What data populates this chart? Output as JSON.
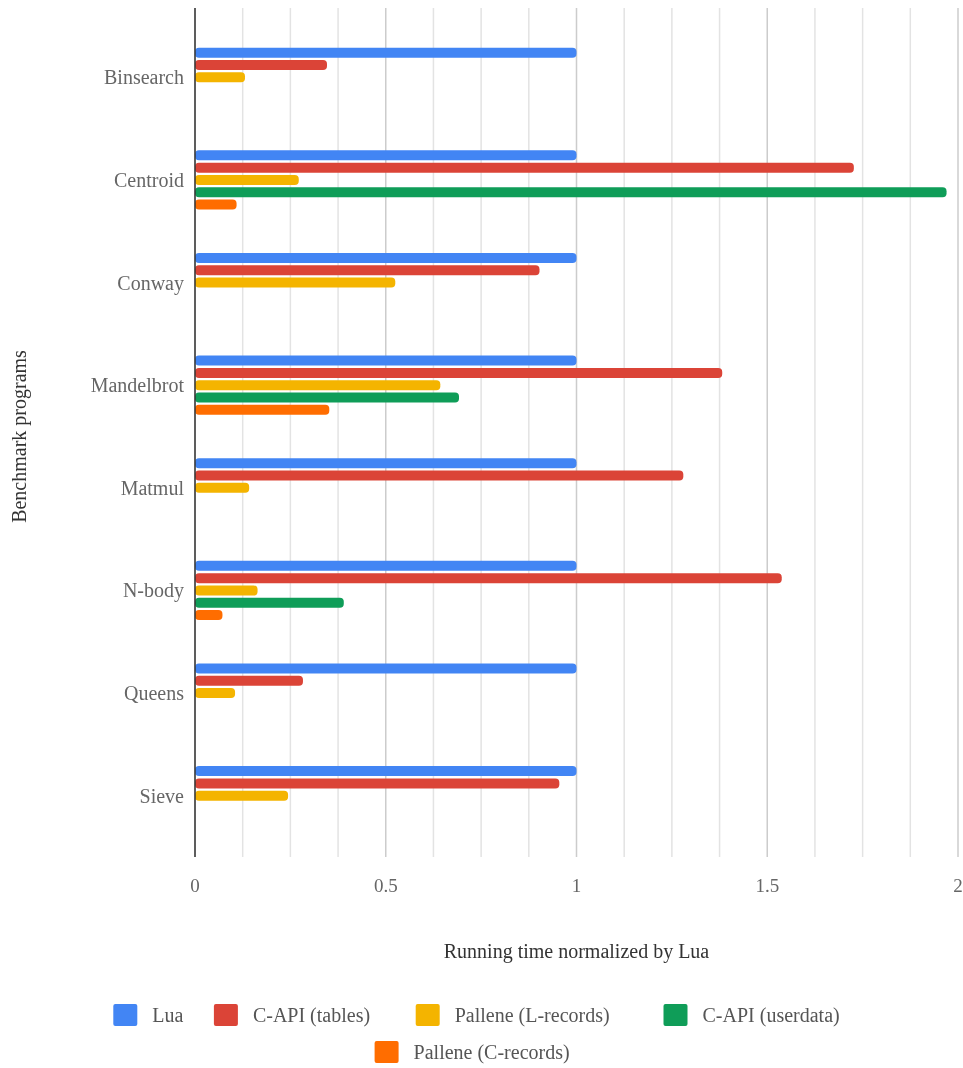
{
  "chart_data": {
    "type": "bar",
    "orientation": "horizontal",
    "xlabel": "Running time normalized by Lua",
    "ylabel": "Benchmark programs",
    "categories": [
      "Binsearch",
      "Centroid",
      "Conway",
      "Mandelbrot",
      "Matmul",
      "N-body",
      "Queens",
      "Sieve"
    ],
    "series": [
      {
        "name": "Lua",
        "color": "#4285f4",
        "values": [
          1,
          1,
          1,
          1,
          1,
          1,
          1,
          1
        ]
      },
      {
        "name": "C-API (tables)",
        "color": "#db4437",
        "values": [
          0.346,
          1.727,
          0.903,
          1.382,
          1.28,
          1.538,
          0.283,
          0.955
        ]
      },
      {
        "name": "Pallene (L-records)",
        "color": "#f4b400",
        "values": [
          0.131,
          0.272,
          0.525,
          0.643,
          0.142,
          0.164,
          0.105,
          0.244
        ]
      },
      {
        "name": "C-API (userdata)",
        "color": "#0f9d58",
        "values": [
          null,
          1.97,
          null,
          0.692,
          null,
          0.39,
          null,
          null
        ]
      },
      {
        "name": "Pallene (C-records)",
        "color": "#ff6d00",
        "values": [
          null,
          0.109,
          null,
          0.352,
          null,
          0.072,
          null,
          null
        ]
      }
    ],
    "xlim": [
      0,
      2
    ],
    "xticks": [
      0,
      {
        "value": 0.125,
        "label": null
      },
      {
        "value": 0.25,
        "label": null
      },
      {
        "value": 0.375,
        "label": null
      },
      0.5,
      {
        "value": 0.625,
        "label": null
      },
      {
        "value": 0.75,
        "label": null
      },
      {
        "value": 0.875,
        "label": null
      },
      1,
      {
        "value": 1.125,
        "label": null
      },
      {
        "value": 1.25,
        "label": null
      },
      {
        "value": 1.375,
        "label": null
      },
      1.5,
      {
        "value": 1.625,
        "label": null
      },
      {
        "value": 1.75,
        "label": null
      },
      {
        "value": 1.875,
        "label": null
      },
      2
    ],
    "grid": "x",
    "legend": "bottom"
  }
}
